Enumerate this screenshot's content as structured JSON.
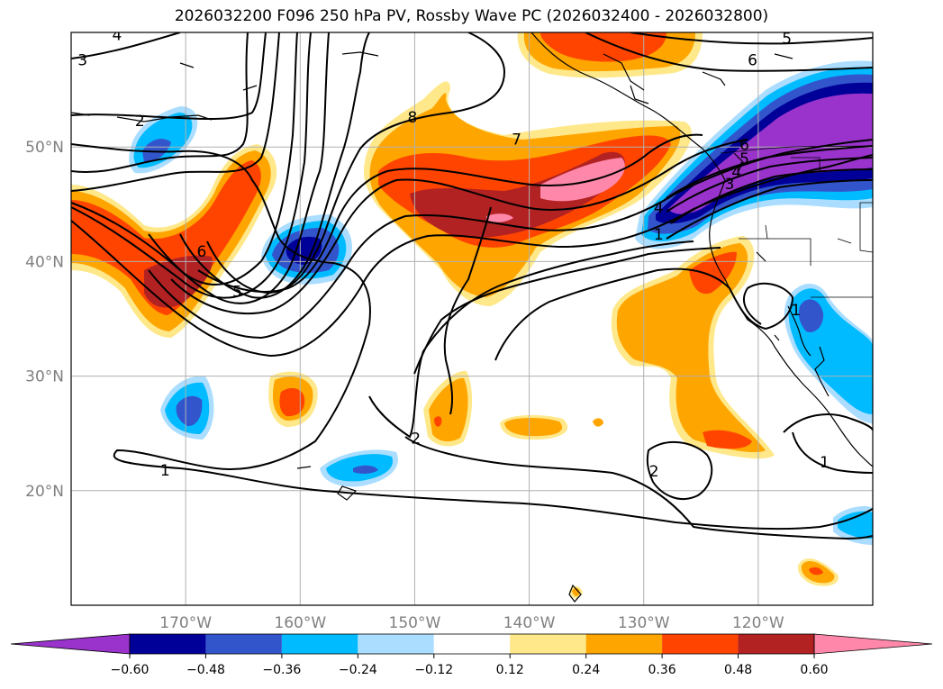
{
  "title": "2026032200 F096 250 hPa PV, Rossby Wave PC (2026032400 - 2026032800)",
  "map": {
    "lon_range": [
      -180,
      -110
    ],
    "lat_range": [
      10,
      60
    ],
    "lon_ticks": [
      {
        "value": -170,
        "label": "170°W"
      },
      {
        "value": -160,
        "label": "160°W"
      },
      {
        "value": -150,
        "label": "150°W"
      },
      {
        "value": -140,
        "label": "140°W"
      },
      {
        "value": -130,
        "label": "130°W"
      },
      {
        "value": -120,
        "label": "120°W"
      }
    ],
    "lat_ticks": [
      {
        "value": 20,
        "label": "20°N"
      },
      {
        "value": 30,
        "label": "30°N"
      },
      {
        "value": 40,
        "label": "40°N"
      },
      {
        "value": 50,
        "label": "50°N"
      }
    ],
    "grid": true,
    "tick_label_color": "#808080",
    "contour_labels": [
      {
        "text": "4",
        "lon": -176,
        "lat": 59.8
      },
      {
        "text": "3",
        "lon": -179,
        "lat": 57.6
      },
      {
        "text": "2",
        "lon": -174,
        "lat": 52.3
      },
      {
        "text": "5",
        "lon": -117.5,
        "lat": 59.5
      },
      {
        "text": "6",
        "lon": -120.5,
        "lat": 57.6
      },
      {
        "text": "8",
        "lon": -150.2,
        "lat": 52.6
      },
      {
        "text": "7",
        "lon": -141.1,
        "lat": 50.7
      },
      {
        "text": "6",
        "lon": -121.2,
        "lat": 50.2
      },
      {
        "text": "5",
        "lon": -121.2,
        "lat": 49.0
      },
      {
        "text": "4",
        "lon": -121.9,
        "lat": 47.8
      },
      {
        "text": "3",
        "lon": -122.5,
        "lat": 46.8
      },
      {
        "text": "4",
        "lon": -128.7,
        "lat": 44.7
      },
      {
        "text": "1",
        "lon": -128.7,
        "lat": 42.4
      },
      {
        "text": "6",
        "lon": -168.6,
        "lat": 40.9
      },
      {
        "text": "5",
        "lon": -165.5,
        "lat": 37.4
      },
      {
        "text": "1",
        "lon": -116.7,
        "lat": 35.8
      },
      {
        "text": "2",
        "lon": -149.9,
        "lat": 24.6
      },
      {
        "text": "1",
        "lon": -171.8,
        "lat": 21.8
      },
      {
        "text": "2",
        "lon": -129.1,
        "lat": 21.7
      },
      {
        "text": "1",
        "lon": -114.2,
        "lat": 22.5
      }
    ]
  },
  "colorbar": {
    "ticks": [
      "−0.60",
      "−0.48",
      "−0.36",
      "−0.24",
      "−0.12",
      "0.12",
      "0.24",
      "0.36",
      "0.48",
      "0.60"
    ],
    "colors": [
      "#9933cc",
      "#000099",
      "#3355cc",
      "#00bbff",
      "#aaddff",
      "#ffffff",
      "#ffe88a",
      "#ffa500",
      "#ff4400",
      "#b22222",
      "#ff88aa"
    ],
    "extend": "both"
  },
  "legend_palette": {
    "negative": [
      "#9933cc",
      "#000099",
      "#3355cc",
      "#00bbff",
      "#aaddff"
    ],
    "positive": [
      "#ffe88a",
      "#ffa500",
      "#ff4400",
      "#b22222",
      "#ff88aa"
    ]
  },
  "chart_data": {
    "type": "heatmap",
    "title": "2026032200 F096 250 hPa PV, Rossby Wave PC (2026032400 - 2026032800)",
    "fields": [
      "Rossby Wave PC (shaded)",
      "250 hPa PV (contours)"
    ],
    "contour_levels_labeled": [
      1,
      2,
      3,
      4,
      5,
      6,
      7,
      8
    ],
    "shading_levels": [
      -0.6,
      -0.48,
      -0.36,
      -0.24,
      -0.12,
      0.12,
      0.24,
      0.36,
      0.48,
      0.6
    ],
    "xlim": [
      -180,
      -110
    ],
    "ylim": [
      10,
      60
    ]
  }
}
